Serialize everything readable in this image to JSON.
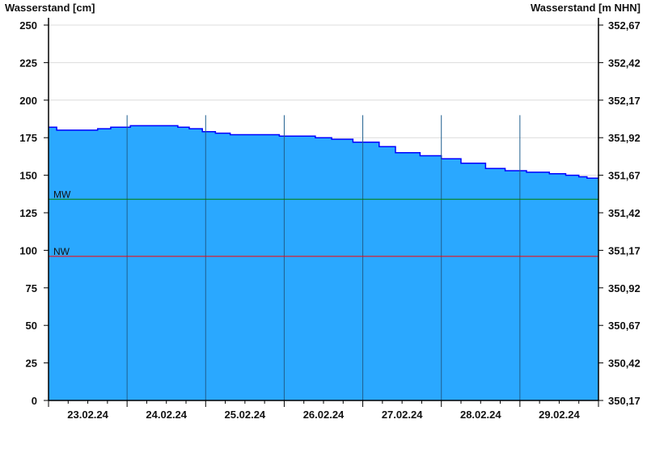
{
  "chart_data": {
    "type": "area",
    "ylabel_left": "Wasserstand [cm]",
    "ylabel_right": "Wasserstand [m NHN]",
    "ylim": [
      0,
      250
    ],
    "yticks_left": [
      "0",
      "25",
      "50",
      "75",
      "100",
      "125",
      "150",
      "175",
      "200",
      "225",
      "250"
    ],
    "yticks_right": [
      "350,17",
      "350,42",
      "350,67",
      "350,92",
      "351,17",
      "351,42",
      "351,67",
      "351,92",
      "352,17",
      "352,42",
      "352,67"
    ],
    "xlim": [
      "23.02.24 00:00",
      "01.03.24 00:00"
    ],
    "xtick_labels": [
      "23.02.24",
      "24.02.24",
      "25.02.24",
      "26.02.24",
      "27.02.24",
      "28.02.24",
      "29.02.24"
    ],
    "grid": true,
    "colors": {
      "fill": "#2aa8ff",
      "line": "#0000ff",
      "mw": "#008000",
      "nw": "#ff0000",
      "day_lines": "#1f5f8f",
      "grid": "#dcdcdc"
    },
    "reference_lines": [
      {
        "label": "MW",
        "value": 134
      },
      {
        "label": "NW",
        "value": 96
      }
    ],
    "series": [
      {
        "x": [
          "23.02.24 00:00",
          "23.02.24 02:30",
          "23.02.24 10:00",
          "23.02.24 15:00",
          "23.02.24 19:00",
          "24.02.24 01:00",
          "24.02.24 09:00",
          "24.02.24 15:30",
          "24.02.24 19:00",
          "24.02.24 23:00",
          "25.02.24 03:00",
          "25.02.24 07:30",
          "25.02.24 20:00",
          "25.02.24 22:30",
          "26.02.24 04:30",
          "26.02.24 09:30",
          "26.02.24 14:30",
          "26.02.24 21:00",
          "27.02.24 05:00",
          "27.02.24 10:00",
          "27.02.24 17:30",
          "28.02.24 00:00",
          "28.02.24 06:00",
          "28.02.24 13:30",
          "28.02.24 19:30",
          "29.02.24 02:00",
          "29.02.24 09:00",
          "29.02.24 14:00",
          "29.02.24 18:00",
          "29.02.24 20:30",
          "01.03.24 00:00"
        ],
        "y": [
          182,
          180,
          180,
          181,
          182,
          183,
          183,
          182,
          181,
          179,
          178,
          177,
          177,
          176,
          176,
          175,
          174,
          172,
          169,
          165,
          163,
          161,
          158,
          154.5,
          153,
          152,
          151,
          150,
          149,
          148,
          148
        ]
      }
    ]
  }
}
